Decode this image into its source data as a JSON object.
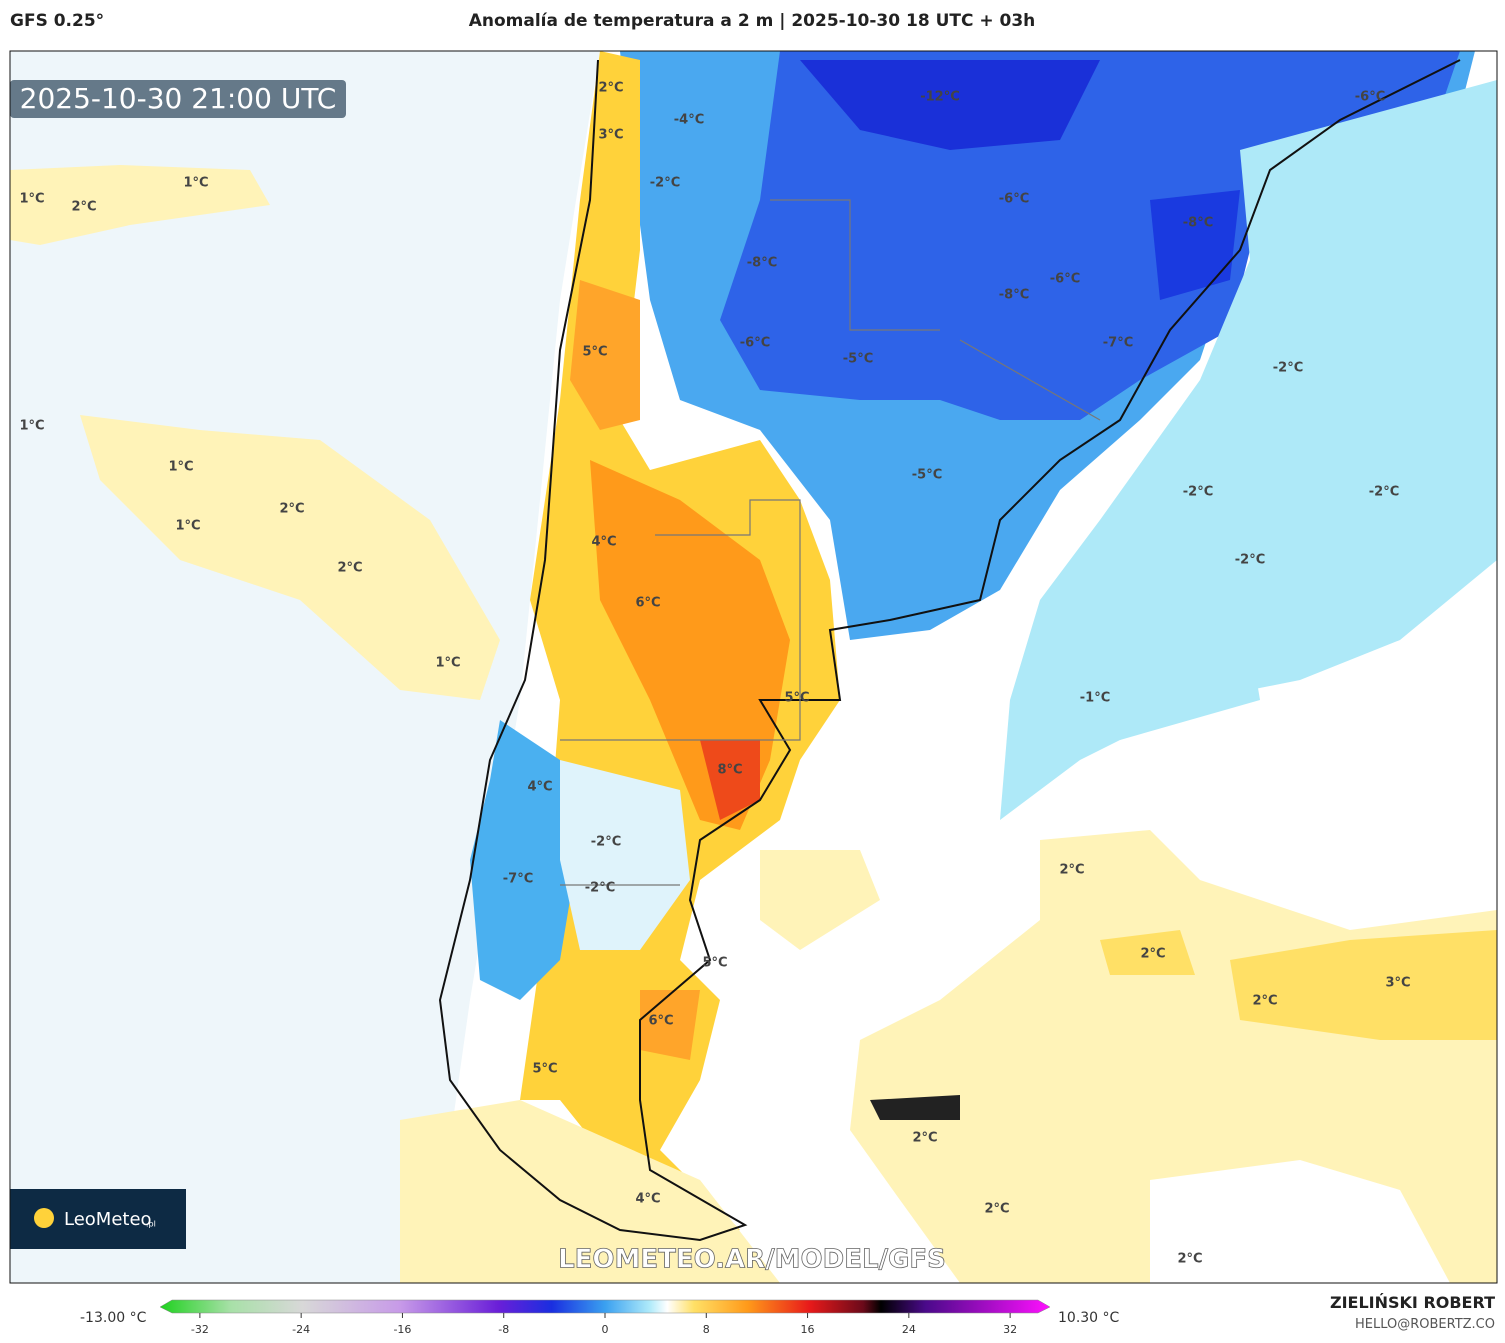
{
  "header": {
    "model": "GFS 0.25°",
    "title": "Anomalía de temperatura a 2 m | 2025-10-30 18 UTC + 03h"
  },
  "map": {
    "timestamp": "2025-10-30 21:00 UTC",
    "logo": "LeoMeteo",
    "logo_suffix": ".pl",
    "watermark": "LEOMETEO.AR/MODEL/GFS",
    "labels": [
      "2°C",
      "3°C",
      "-4°C",
      "-2°C",
      "-12°C",
      "-6°C",
      "1°C",
      "2°C",
      "1°C",
      "-6°C",
      "-8°C",
      "-8°C",
      "-8°C",
      "-6°C",
      "5°C",
      "-6°C",
      "-5°C",
      "-7°C",
      "-2°C",
      "1°C",
      "1°C",
      "2°C",
      "1°C",
      "-5°C",
      "-2°C",
      "-2°C",
      "4°C",
      "-2°C",
      "2°C",
      "6°C",
      "1°C",
      "5°C",
      "-1°C",
      "8°C",
      "4°C",
      "-2°C",
      "2°C",
      "-7°C",
      "-2°C",
      "2°C",
      "5°C",
      "3°C",
      "2°C",
      "6°C",
      "5°C",
      "2°C",
      "4°C",
      "2°C",
      "2°C"
    ]
  },
  "colorbar": {
    "min_label": "-13.00 °C",
    "max_label": "10.30 °C",
    "ticks": [
      -32,
      -24,
      -16,
      -8,
      0,
      8,
      16,
      24,
      32
    ]
  },
  "footer": {
    "author": "ZIELIŃSKI ROBERT",
    "contact": "HELLO@ROBERTZ.CO"
  }
}
